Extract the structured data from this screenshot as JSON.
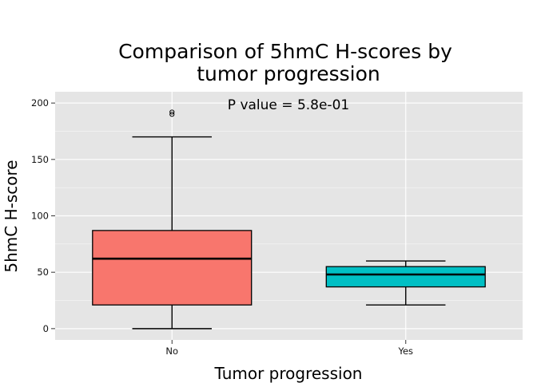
{
  "chart_data": {
    "type": "boxplot",
    "title_lines": [
      "Comparison of 5hmC H-scores by",
      "tumor progression"
    ],
    "xlabel": "Tumor progression",
    "ylabel": "5hmC H-score",
    "annotation": "P value = 5.8e-01",
    "ylim": [
      -10,
      210
    ],
    "yticks": [
      0,
      50,
      100,
      150,
      200
    ],
    "categories": [
      "No",
      "Yes"
    ],
    "boxes": [
      {
        "category": "No",
        "min": 0,
        "q1": 21,
        "median": 62,
        "q3": 87,
        "max": 170,
        "outliers": [
          190,
          192
        ],
        "color": "#F8766D"
      },
      {
        "category": "Yes",
        "min": 21,
        "q1": 37,
        "median": 48,
        "q3": 55,
        "max": 60,
        "outliers": [],
        "color": "#00BFC4"
      }
    ],
    "panel_background": "#E5E5E5",
    "grid_color": "#FFFFFF"
  }
}
